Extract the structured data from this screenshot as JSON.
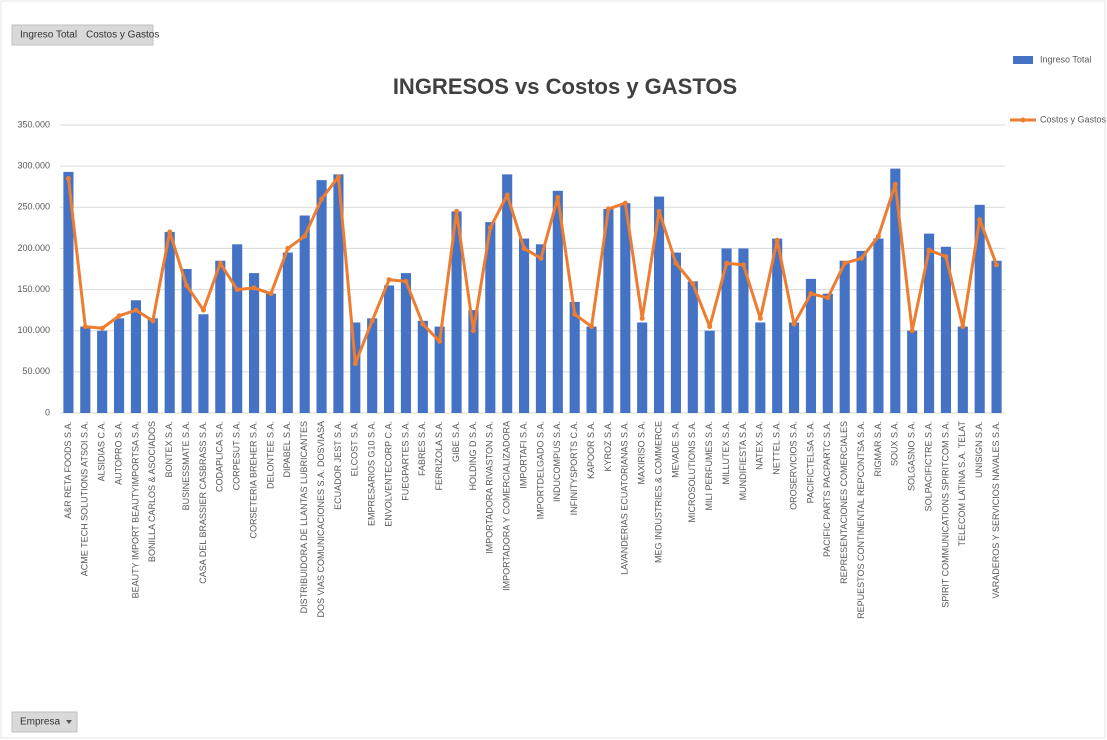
{
  "chart_data": {
    "type": "bar_line",
    "title": "INGRESOS vs Costos y GASTOS",
    "axis_field": "Empresa",
    "categories": [
      "A&R RETA FOODS S.A.",
      "ACME TECH SOLUTIONS ATSOI S.A.",
      "ALSIDIAS C.A.",
      "AUTOPRO S.A.",
      "BEAUTY IMPORT BEAUTYIMPORTSA S.A.",
      "BONILLA CARLOS & ASOCIADOS",
      "BONTEX S.A.",
      "BUSINESSMATE S.A.",
      "CASA DEL BRASSIER CASBRASS S.A.",
      "CODAPLICA S.A.",
      "CORPESUT S.A.",
      "CORSETERIA BREHER S.A.",
      "DELONTEE S.A.",
      "DIPABEL S.A.",
      "DISTRIBUIDORA DE LLANTAS LUBRICANTES",
      "DOS VIAS COMUNICACIONES S.A. DOSVIASA",
      "ECUADOR JEST S.A.",
      "ELCOST S.A.",
      "EMPRESARIOS G10 S.A.",
      "ENVOLVENTECORP C.A.",
      "FUEGPARTES S.A.",
      "FABRES S.A.",
      "FERRIZOLA S.A.",
      "GIBE S.A.",
      "HOLDING D S.A.",
      "IMPORTADORA RIVASTON S.A.",
      "IMPORTADORA Y COMERCIALIZADORA",
      "IMPORTAFI S.A.",
      "IMPORTDELGADO S.A.",
      "INDUCOMPUS S.A.",
      "INFINITYSPORTS C.A.",
      "KAPOOR S.A.",
      "KYROZ S.A.",
      "LAVANDERIAS ECUATORIANAS S.A.",
      "MAXIRISO S.A.",
      "MEG INDUSTRIES & COMMERCE",
      "MEVADE S.A.",
      "MICROSOLUTIONS S.A.",
      "MILI PERFUMES S.A.",
      "MILLUTEX S.A.",
      "MUNDIFIESTA S.A.",
      "NATEX S.A.",
      "NETTEL S.A.",
      "OROSERVICIOS S.A.",
      "PACIFICTELSA S.A.",
      "PACIFIC PARTS PACPARTC S.A.",
      "REPRESENTACIONES COMERCIALES",
      "REPUESTOS CONTINENTAL REPCONTSA S.A.",
      "RIGMAR S.A.",
      "SOUX S.A.",
      "SOLGASNO S.A.",
      "SOLPACIFICTRE S.A.",
      "SPIRIT COMMUNICATIONS SPIRITCOM S.A.",
      "TELECOM LATINA S.A. TELAT",
      "UNISIGN S.A.",
      "VARADEROS Y SERVICIOS NAVALES S.A."
    ],
    "series": [
      {
        "name": "Ingreso Total",
        "type": "bar",
        "color": "#4472c4",
        "values": [
          293000,
          105000,
          100000,
          115000,
          137000,
          115000,
          220000,
          175000,
          120000,
          185000,
          205000,
          170000,
          145000,
          195000,
          240000,
          283000,
          290000,
          110000,
          115000,
          155000,
          170000,
          112000,
          105000,
          245000,
          125000,
          232000,
          290000,
          212000,
          205000,
          270000,
          135000,
          105000,
          248000,
          255000,
          110000,
          263000,
          195000,
          160000,
          100000,
          200000,
          200000,
          110000,
          212000,
          110000,
          163000,
          145000,
          185000,
          197000,
          212000,
          297000,
          100000,
          218000,
          202000,
          105000,
          253000,
          185000
        ]
      },
      {
        "name": "Costos y Gastos",
        "type": "line",
        "color": "#ed7d31",
        "values": [
          285000,
          105000,
          103000,
          118000,
          125000,
          112000,
          220000,
          155000,
          125000,
          182000,
          150000,
          152000,
          145000,
          200000,
          215000,
          260000,
          287000,
          60000,
          112000,
          162000,
          160000,
          108000,
          87000,
          245000,
          100000,
          225000,
          265000,
          200000,
          188000,
          262000,
          120000,
          105000,
          248000,
          255000,
          115000,
          245000,
          182000,
          157000,
          105000,
          182000,
          180000,
          115000,
          210000,
          108000,
          145000,
          140000,
          182000,
          188000,
          215000,
          278000,
          100000,
          198000,
          190000,
          105000,
          235000,
          180000
        ]
      }
    ],
    "ylim": [
      0,
      350000
    ],
    "yticks": [
      0,
      {
        "value": 50000,
        "label": "50.000"
      },
      {
        "value": 100000,
        "label": "100.000"
      },
      {
        "value": 150000,
        "label": "150.000"
      },
      {
        "value": 200000,
        "label": "200.000"
      },
      {
        "value": 250000,
        "label": "250.000"
      },
      {
        "value": 300000,
        "label": "300.000"
      },
      {
        "value": 350000,
        "label": "350.000"
      }
    ],
    "grid": true,
    "legend": "right"
  }
}
